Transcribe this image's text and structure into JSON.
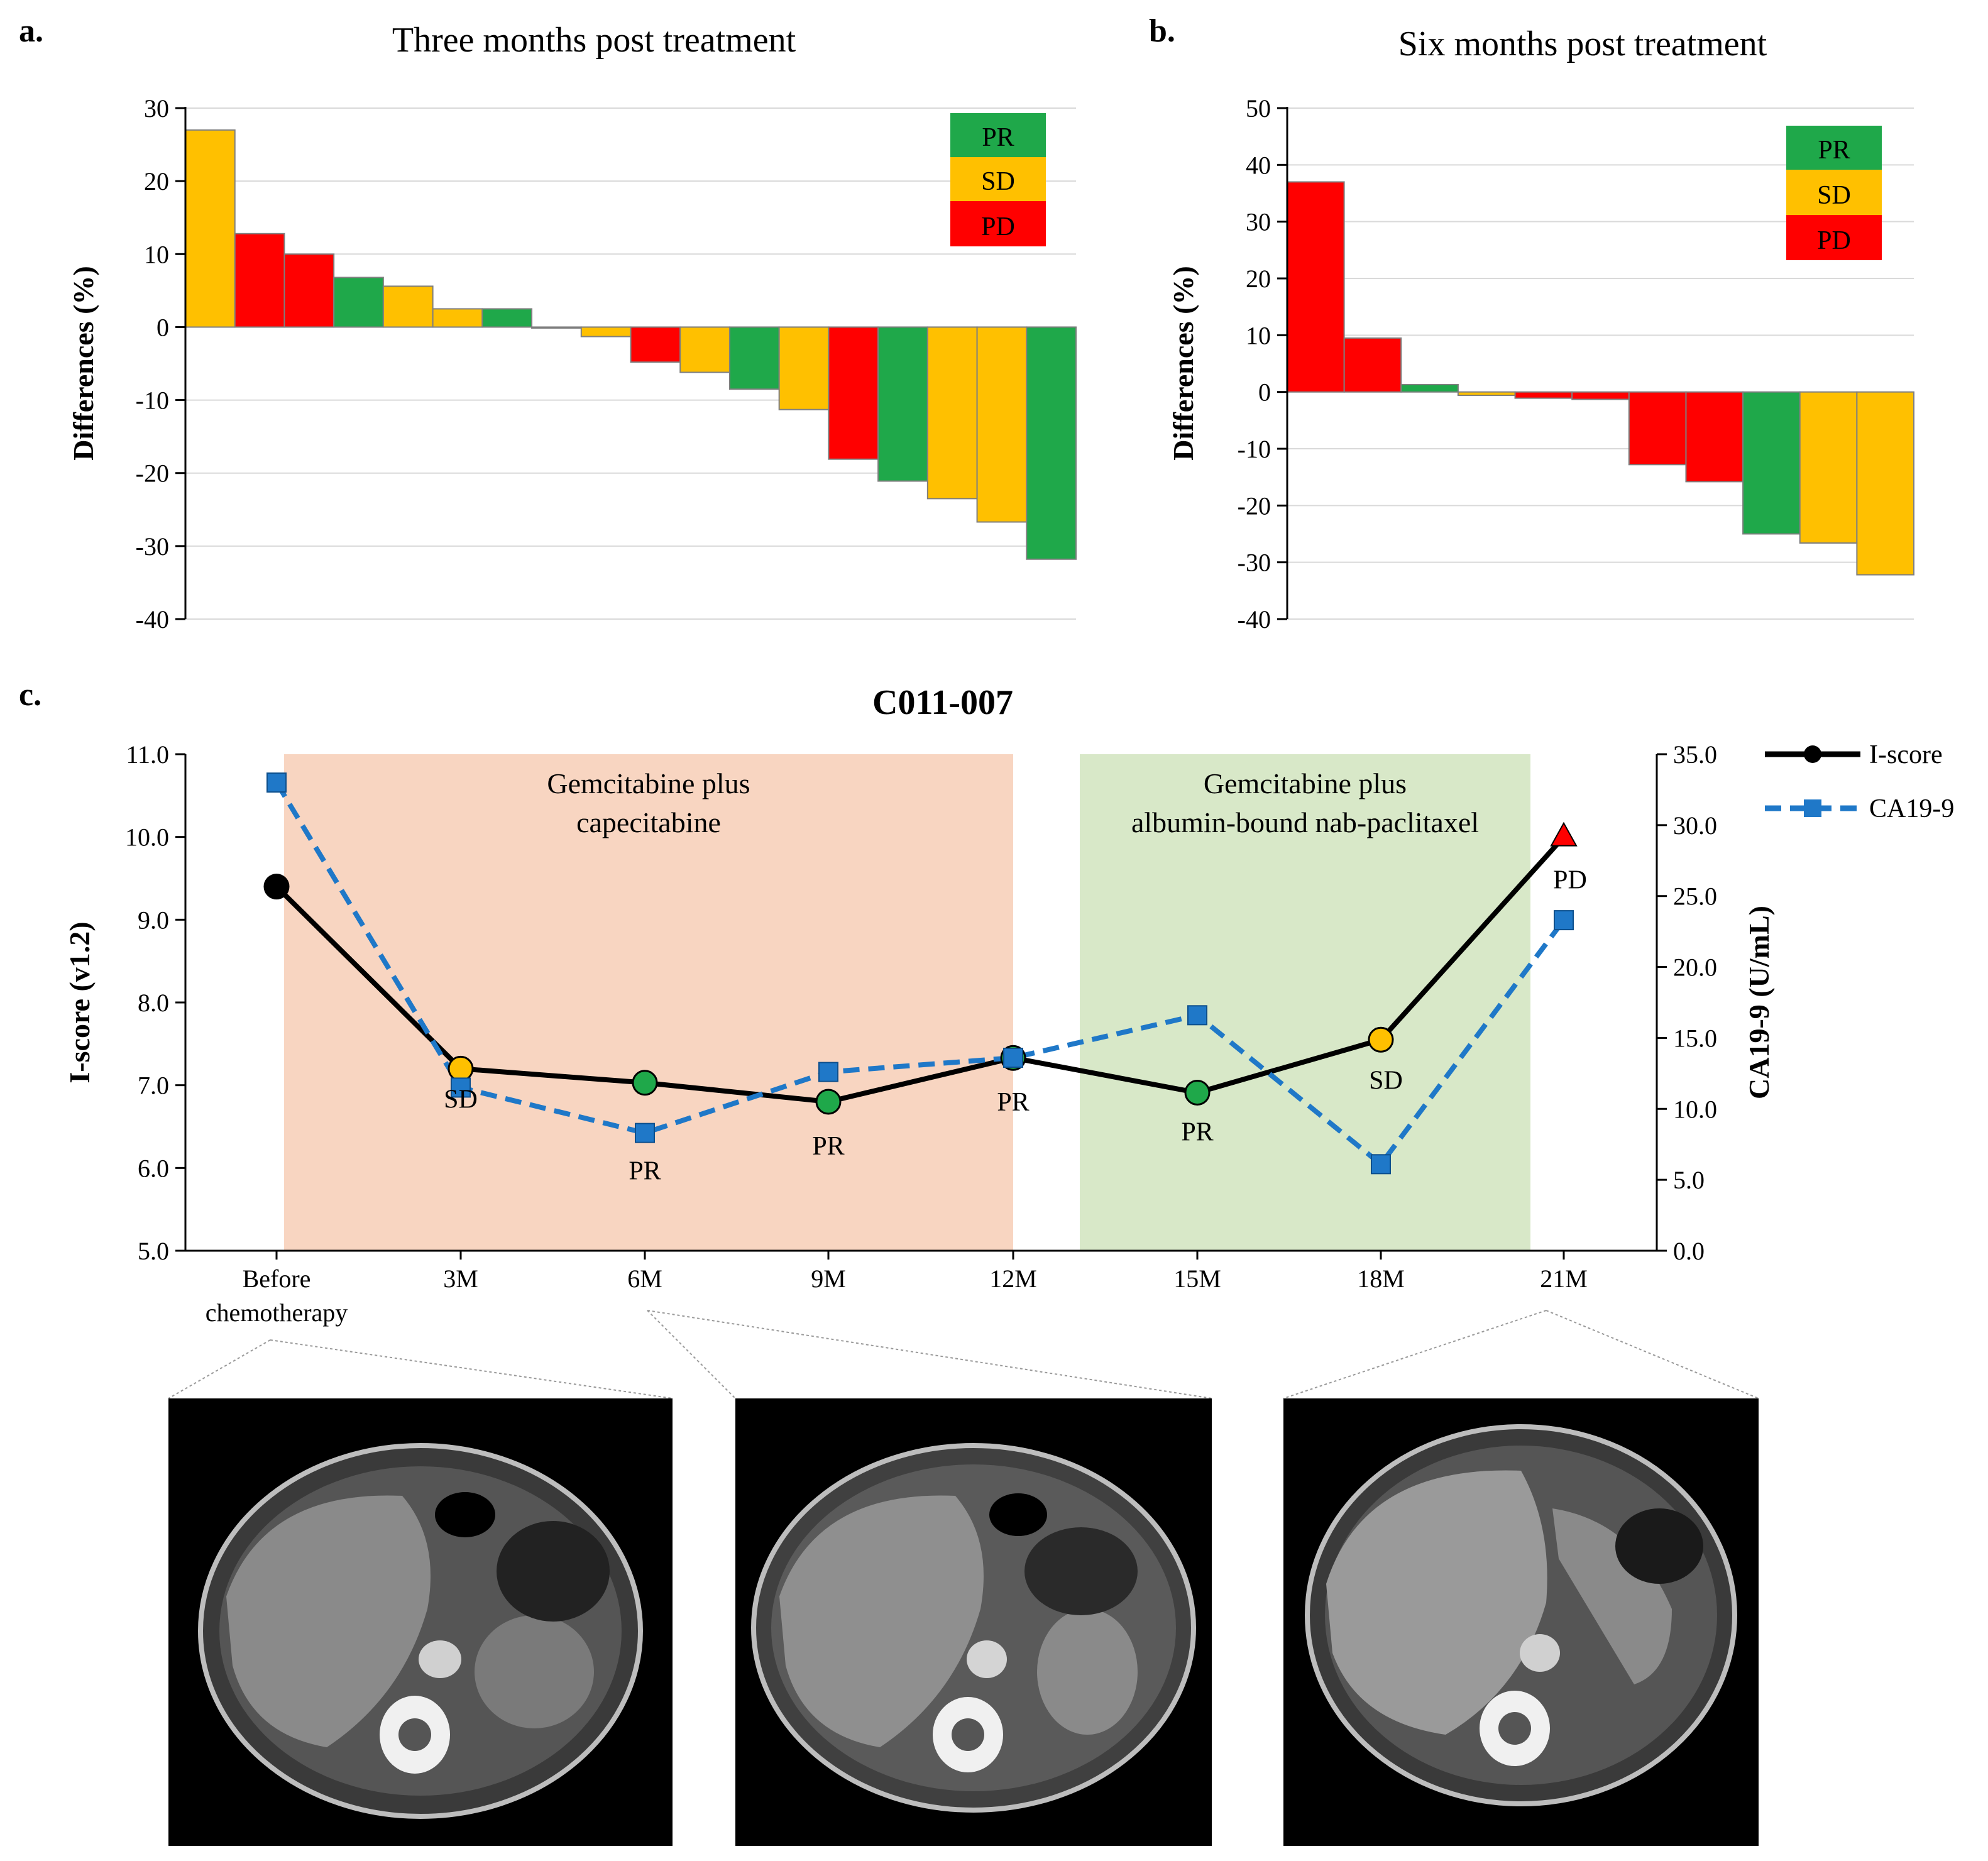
{
  "panel_a": {
    "letter": "a.",
    "chart_data": {
      "type": "bar",
      "title": "Three months post treatment",
      "xlabel": "",
      "ylabel": "Differences (%)",
      "ylim": [
        -40,
        30
      ],
      "yticks": [
        30,
        20,
        10,
        0,
        -10,
        -20,
        -30,
        -40
      ],
      "values": [
        27,
        12.8,
        10,
        6.8,
        5.6,
        2.5,
        2.5,
        0,
        -1.3,
        -4.8,
        -6.2,
        -8.5,
        -11.3,
        -18.1,
        -21.1,
        -23.5,
        -26.7,
        -31.8
      ],
      "categories_status": [
        "SD",
        "PD",
        "PD",
        "PR",
        "SD",
        "SD",
        "PR",
        "PR",
        "SD",
        "PD",
        "SD",
        "PR",
        "SD",
        "PD",
        "PR",
        "SD",
        "SD",
        "PR"
      ],
      "legend": [
        "PR",
        "SD",
        "PD"
      ],
      "legend_position": "top-right"
    }
  },
  "panel_b": {
    "letter": "b.",
    "chart_data": {
      "type": "bar",
      "title": "Six months post treatment",
      "xlabel": "",
      "ylabel": "Differences (%)",
      "ylim": [
        -40,
        50
      ],
      "yticks": [
        50,
        40,
        30,
        20,
        10,
        0,
        -10,
        -20,
        -30,
        -40
      ],
      "values": [
        37,
        9.5,
        1.3,
        -0.6,
        -1.1,
        -1.3,
        -12.8,
        -15.8,
        -25,
        -26.6,
        -32.2
      ],
      "categories_status": [
        "PD",
        "PD",
        "PR",
        "SD",
        "PD",
        "PD",
        "PD",
        "PD",
        "PR",
        "SD",
        "SD"
      ],
      "legend": [
        "PR",
        "SD",
        "PD"
      ],
      "legend_position": "top-right"
    }
  },
  "panel_c": {
    "letter": "c.",
    "chart_data": {
      "type": "line",
      "title": "C011-007",
      "categories": [
        "Before chemotherapy",
        "3M",
        "6M",
        "9M",
        "12M",
        "15M",
        "18M",
        "21M"
      ],
      "category_lines": [
        [
          "Before",
          "chemotherapy"
        ],
        [
          "3M"
        ],
        [
          "6M"
        ],
        [
          "9M"
        ],
        [
          "12M"
        ],
        [
          "15M"
        ],
        [
          "18M"
        ],
        [
          "21M"
        ]
      ],
      "ylabel_left": "I-score (v1.2)",
      "ylabel_right": "CA19-9 (U/mL)",
      "ylim_left": [
        5.0,
        11.0
      ],
      "ylim_right": [
        0.0,
        35.0
      ],
      "yticks_left": [
        "11.0",
        "10.0",
        "9.0",
        "8.0",
        "7.0",
        "6.0",
        "5.0"
      ],
      "yticks_right": [
        "35.0",
        "30.0",
        "25.0",
        "20.0",
        "15.0",
        "10.0",
        "5.0",
        "0.0"
      ],
      "series": [
        {
          "name": "I-score",
          "axis": "left",
          "values": [
            9.4,
            7.2,
            7.03,
            6.8,
            7.33,
            6.91,
            7.55,
            10.0
          ],
          "point_status": [
            "",
            "SD",
            "PR",
            "PR",
            "PR",
            "PR",
            "SD",
            "PD"
          ]
        },
        {
          "name": "CA19-9",
          "axis": "right",
          "values": [
            33.0,
            11.5,
            8.3,
            12.6,
            13.6,
            16.6,
            6.1,
            23.3
          ]
        }
      ],
      "shaded_regions": [
        {
          "label_lines": [
            "Gemcitabine plus",
            "capecitabine"
          ],
          "color": "#f8d5c1"
        },
        {
          "label_lines": [
            "Gemcitabine plus",
            "albumin-bound nab-paclitaxel"
          ],
          "color": "#d8e8c8"
        }
      ],
      "legend_position": "top-right"
    }
  },
  "colors": {
    "PR": "#1fa84a",
    "SD": "#ffc000",
    "PD": "#ff0000",
    "iscore": "#000000",
    "ca199": "#1f78c8"
  },
  "ct_images": [
    {
      "name": "ct-before-chemotherapy"
    },
    {
      "name": "ct-6m"
    },
    {
      "name": "ct-21m"
    }
  ]
}
